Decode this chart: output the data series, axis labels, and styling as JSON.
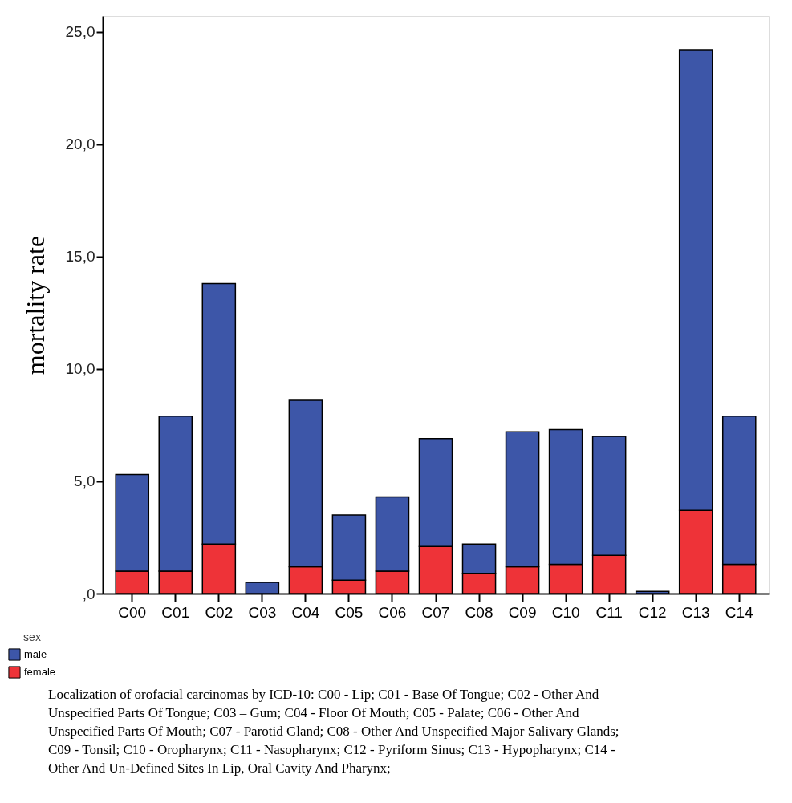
{
  "chart_data": {
    "type": "bar",
    "stacked": true,
    "ylabel": "mortality rate",
    "legend_title": "sex",
    "legend": "bottom left",
    "grid": false,
    "categories": [
      "C00",
      "C01",
      "C02",
      "C03",
      "C04",
      "C05",
      "C06",
      "C07",
      "C08",
      "C09",
      "C10",
      "C11",
      "C12",
      "C13",
      "C14"
    ],
    "series": [
      {
        "name": "female",
        "color": "#ee3338",
        "values": [
          1.0,
          1.0,
          2.2,
          0,
          1.2,
          0.6,
          1.0,
          2.1,
          0.9,
          1.2,
          1.3,
          1.7,
          0,
          3.7,
          1.3
        ]
      },
      {
        "name": "male",
        "color": "#3d56a8",
        "values": [
          4.3,
          6.9,
          11.6,
          0.5,
          7.4,
          2.9,
          3.3,
          4.8,
          1.3,
          6.0,
          6.0,
          5.3,
          0.1,
          20.5,
          6.6
        ]
      }
    ],
    "ylim": [
      0,
      25.7
    ],
    "yticks": [
      {
        "value": 0,
        "label": ",0"
      },
      {
        "value": 5,
        "label": "5,0"
      },
      {
        "value": 10,
        "label": "10,0"
      },
      {
        "value": 15,
        "label": "15,0"
      },
      {
        "value": 20,
        "label": "20,0"
      },
      {
        "value": 25,
        "label": "25,0"
      }
    ],
    "annotations": [
      "Localization of orofacial carcinomas by ICD-10: C00 - Lip; C01 -  Base Of Tongue; C02 - Other And Unspecified Parts Of Tongue; C03 – Gum;  C04 - Floor Of Mouth; C05 - Palate;  C06 - Other And Unspecified Parts Of Mouth; C07 - Parotid Gland; C08 - Other And Unspecified Major Salivary Glands; C09 - Tonsil; C10 - Oropharynx; C11 - Nasopharynx; C12 - Pyriform Sinus; C13 - Hypopharynx; C14 - Other And Un-Defined Sites In Lip, Oral Cavity And Pharynx;"
    ]
  }
}
